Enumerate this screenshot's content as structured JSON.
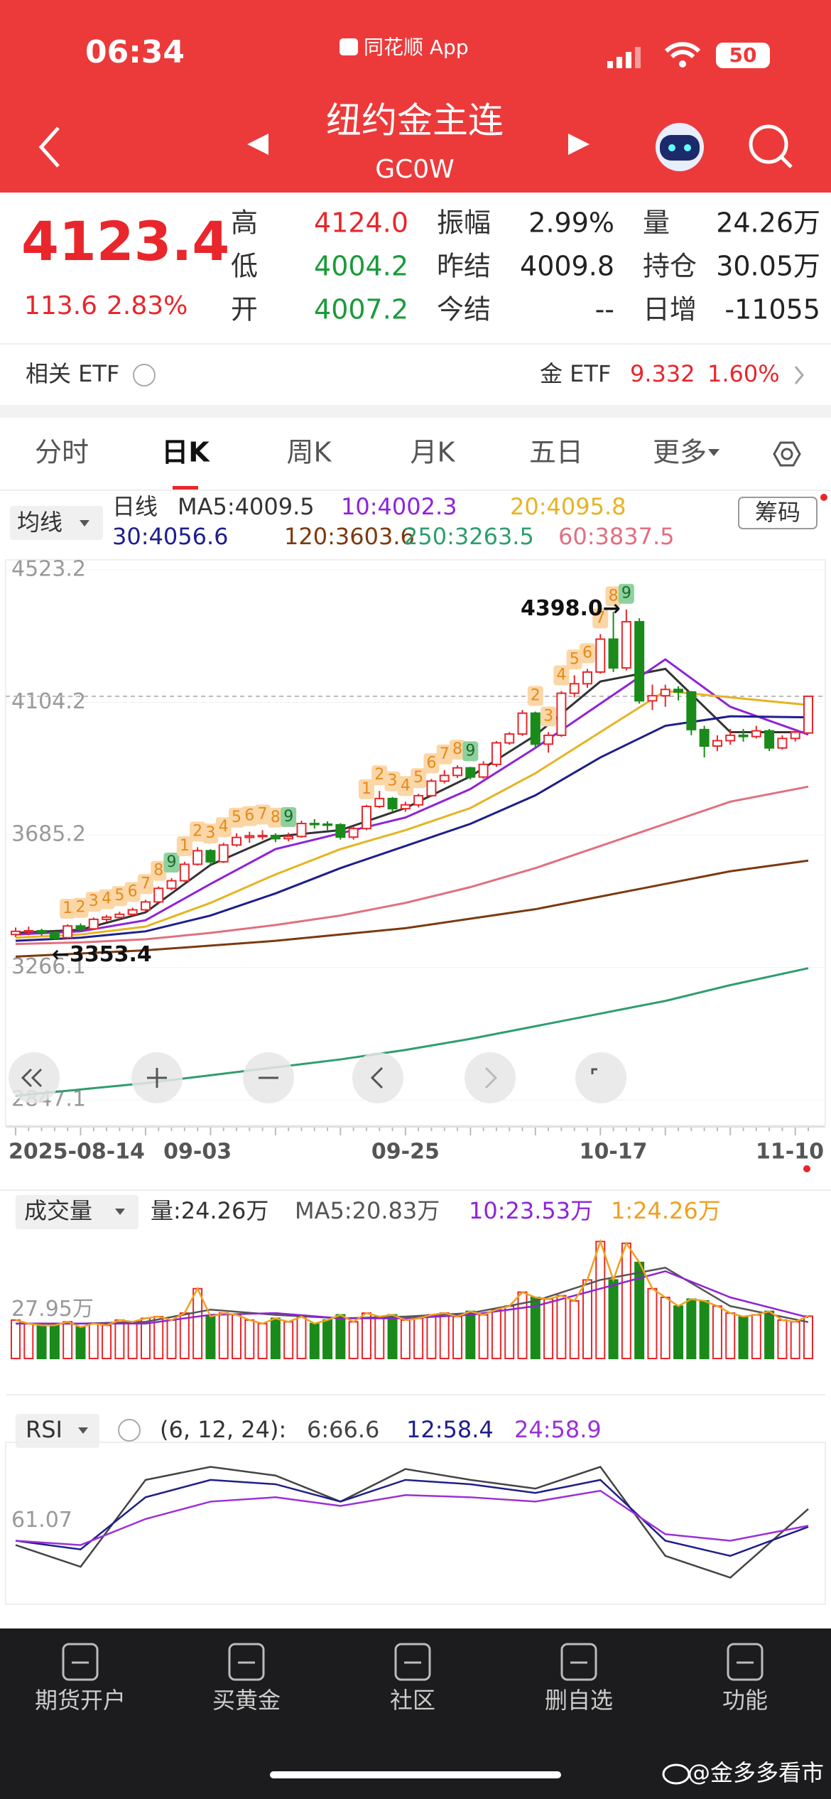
{
  "status_bar": {
    "time": "06:34",
    "app": "同花顺 App",
    "battery": "50"
  },
  "header": {
    "title": "纽约金主连",
    "code": "GC0W"
  },
  "quote": {
    "price": "4123.4",
    "change": "113.6",
    "change_pct": "2.83%",
    "fields": [
      {
        "label": "高",
        "value": "4124.0",
        "color": "#e8262b"
      },
      {
        "label": "振幅",
        "value": "2.99%",
        "color": "#222222"
      },
      {
        "label": "量",
        "value": "24.26万",
        "color": "#222222"
      },
      {
        "label": "低",
        "value": "4004.2",
        "color": "#1a9b3a"
      },
      {
        "label": "昨结",
        "value": "4009.8",
        "color": "#222222"
      },
      {
        "label": "持仓",
        "value": "30.05万",
        "color": "#222222"
      },
      {
        "label": "开",
        "value": "4007.2",
        "color": "#1a9b3a"
      },
      {
        "label": "今结",
        "value": "--",
        "color": "#222222"
      },
      {
        "label": "日增",
        "value": "-11055",
        "color": "#222222"
      }
    ]
  },
  "etf": {
    "label": "相关 ETF",
    "name": "金 ETF",
    "price": "9.332",
    "pct": "1.60%"
  },
  "tabs": {
    "items": [
      "分时",
      "日K",
      "周K",
      "月K",
      "五日",
      "更多"
    ],
    "active": 1
  },
  "kline": {
    "selector": "均线",
    "period": "日线",
    "chips": "筹码",
    "ylim": [
      2847.1,
      4523.2
    ],
    "yticks": [
      4523.2,
      4104.2,
      3685.2,
      3266.1,
      2847.1
    ],
    "high_label": "4398.0→",
    "low_label": "←3353.4",
    "dates": [
      "2025-08-14",
      null,
      null,
      null,
      null,
      null,
      null,
      null,
      null,
      null,
      null,
      null,
      null,
      null,
      "09-03",
      null,
      null,
      null,
      null,
      null,
      null,
      null,
      null,
      null,
      null,
      null,
      null,
      null,
      null,
      null,
      "09-25",
      null,
      null,
      null,
      null,
      null,
      null,
      null,
      null,
      null,
      null,
      null,
      null,
      null,
      null,
      null,
      "10-17",
      null,
      null,
      null,
      null,
      null,
      null,
      null,
      null,
      null,
      null,
      null,
      null,
      null,
      null,
      "11-10"
    ],
    "candles": [
      [
        3370,
        3392,
        3362,
        3380
      ],
      [
        3380,
        3395,
        3368,
        3382
      ],
      [
        3382,
        3388,
        3366,
        3376
      ],
      [
        3376,
        3380,
        3353.4,
        3358
      ],
      [
        3360,
        3402,
        3356,
        3397
      ],
      [
        3397,
        3405,
        3380,
        3387
      ],
      [
        3388,
        3424,
        3384,
        3418
      ],
      [
        3418,
        3432,
        3410,
        3425
      ],
      [
        3424,
        3442,
        3418,
        3434
      ],
      [
        3434,
        3455,
        3428,
        3448
      ],
      [
        3448,
        3480,
        3442,
        3473
      ],
      [
        3473,
        3522,
        3468,
        3516
      ],
      [
        3516,
        3548,
        3510,
        3540
      ],
      [
        3540,
        3600,
        3536,
        3592
      ],
      [
        3592,
        3646,
        3588,
        3635
      ],
      [
        3635,
        3640,
        3590,
        3600
      ],
      [
        3600,
        3660,
        3596,
        3653
      ],
      [
        3653,
        3690,
        3648,
        3677
      ],
      [
        3677,
        3695,
        3660,
        3682
      ],
      [
        3682,
        3700,
        3670,
        3683
      ],
      [
        3683,
        3690,
        3662,
        3673
      ],
      [
        3673,
        3692,
        3665,
        3680
      ],
      [
        3680,
        3730,
        3676,
        3721
      ],
      [
        3721,
        3735,
        3705,
        3719
      ],
      [
        3719,
        3728,
        3700,
        3717
      ],
      [
        3717,
        3722,
        3670,
        3678
      ],
      [
        3678,
        3712,
        3670,
        3705
      ],
      [
        3705,
        3780,
        3700,
        3775
      ],
      [
        3775,
        3824,
        3770,
        3800
      ],
      [
        3800,
        3805,
        3760,
        3768
      ],
      [
        3768,
        3790,
        3758,
        3780
      ],
      [
        3780,
        3815,
        3772,
        3809
      ],
      [
        3809,
        3862,
        3805,
        3855
      ],
      [
        3855,
        3890,
        3848,
        3873
      ],
      [
        3873,
        3905,
        3865,
        3897
      ],
      [
        3897,
        3900,
        3860,
        3868
      ],
      [
        3868,
        3918,
        3862,
        3908
      ],
      [
        3908,
        3982,
        3900,
        3976
      ],
      [
        3976,
        4010,
        3970,
        4004
      ],
      [
        4004,
        4080,
        3998,
        4070
      ],
      [
        4070,
        4075,
        3960,
        3972
      ],
      [
        3972,
        4010,
        3945,
        4000
      ],
      [
        4000,
        4140,
        3995,
        4133
      ],
      [
        4133,
        4190,
        4120,
        4163
      ],
      [
        4163,
        4210,
        4150,
        4200
      ],
      [
        4200,
        4320,
        4195,
        4304
      ],
      [
        4304,
        4390,
        4200,
        4213
      ],
      [
        4213,
        4398.0,
        4205,
        4359
      ],
      [
        4359,
        4370,
        4100,
        4109
      ],
      [
        4109,
        4160,
        4080,
        4125
      ],
      [
        4125,
        4160,
        4090,
        4145
      ],
      [
        4145,
        4155,
        4110,
        4137
      ],
      [
        4137,
        4140,
        4000,
        4018
      ],
      [
        4018,
        4030,
        3930,
        3966
      ],
      [
        3966,
        4000,
        3950,
        3983
      ],
      [
        3983,
        4020,
        3970,
        4000
      ],
      [
        4000,
        4020,
        3980,
        3996
      ],
      [
        3996,
        4030,
        3990,
        4014
      ],
      [
        4014,
        4020,
        3950,
        3960
      ],
      [
        3960,
        4000,
        3955,
        3990
      ],
      [
        3990,
        4020,
        3980,
        4009.8
      ],
      [
        4007.2,
        4124.0,
        4004.2,
        4123.4
      ]
    ],
    "td": [
      null,
      null,
      null,
      null,
      1,
      2,
      3,
      4,
      5,
      6,
      7,
      8,
      9,
      1,
      2,
      3,
      4,
      5,
      6,
      7,
      8,
      9,
      null,
      null,
      null,
      null,
      null,
      1,
      2,
      3,
      4,
      5,
      6,
      7,
      8,
      9,
      null,
      null,
      null,
      null,
      2,
      3,
      4,
      5,
      6,
      7,
      8,
      9,
      null,
      null,
      null,
      null,
      null,
      null,
      null,
      null,
      null,
      null,
      null,
      null,
      null,
      null
    ],
    "ma_x": [
      0,
      5,
      10,
      15,
      20,
      25,
      30,
      35,
      40,
      45,
      50,
      55,
      61
    ],
    "ma": [
      {
        "label": "MA5:4009.5",
        "color": "#333333",
        "values": [
          3375,
          3385,
          3440,
          3590,
          3680,
          3700,
          3770,
          3870,
          4000,
          4170,
          4210,
          4010,
          4009.5
        ]
      },
      {
        "label": "10:4002.3",
        "color": "#8e24d6",
        "values": [
          3370,
          3380,
          3415,
          3530,
          3640,
          3690,
          3740,
          3830,
          3960,
          4100,
          4240,
          4090,
          4002.3
        ]
      },
      {
        "label": "20:4095.8",
        "color": "#e6b422",
        "values": [
          3360,
          3370,
          3395,
          3470,
          3560,
          3640,
          3700,
          3770,
          3880,
          4010,
          4140,
          4120,
          4095.8
        ]
      },
      {
        "label": "30:4056.6",
        "color": "#1e1e8c",
        "values": [
          3350,
          3360,
          3380,
          3430,
          3500,
          3580,
          3650,
          3720,
          3810,
          3930,
          4030,
          4060,
          4056.6
        ]
      },
      {
        "label": "120:3603.6",
        "color": "#7b3a10",
        "values": [
          3300,
          3310,
          3320,
          3335,
          3350,
          3370,
          3390,
          3420,
          3450,
          3490,
          3530,
          3570,
          3603.6
        ]
      },
      {
        "label": "250:3263.5",
        "color": "#2e9e6e",
        "values": [
          2860,
          2880,
          2900,
          2925,
          2950,
          2975,
          3005,
          3040,
          3080,
          3120,
          3160,
          3210,
          3263.5
        ]
      },
      {
        "label": "60:3837.5",
        "color": "#e07080",
        "values": [
          3340,
          3345,
          3355,
          3375,
          3400,
          3430,
          3470,
          3520,
          3580,
          3650,
          3720,
          3790,
          3837.5
        ]
      }
    ]
  },
  "volume": {
    "selector": "成交量",
    "label": "量:24.26万",
    "ylim": [
      0,
      70
    ],
    "yticks": [
      {
        "value": 27.95,
        "label": "27.95万"
      }
    ],
    "values": [
      22,
      20,
      19,
      19,
      21,
      18,
      20,
      19,
      22,
      21,
      23,
      24,
      22,
      26,
      40,
      24,
      26,
      25,
      22,
      20,
      23,
      21,
      24,
      20,
      22,
      25,
      21,
      26,
      24,
      25,
      22,
      23,
      25,
      26,
      24,
      27,
      25,
      28,
      30,
      38,
      35,
      34,
      36,
      33,
      45,
      67,
      45,
      66,
      55,
      40,
      35,
      30,
      34,
      33,
      30,
      26,
      24,
      25,
      27,
      22,
      21,
      24.26
    ],
    "day_line": {
      "label": "1:24.26万",
      "color": "#f0a020"
    },
    "ma_x": [
      0,
      5,
      10,
      15,
      20,
      25,
      30,
      35,
      40,
      45,
      50,
      55,
      61
    ],
    "ma": [
      {
        "label": "MA5:20.83万",
        "color": "#555555",
        "values": [
          20,
          20,
          21,
          28,
          25,
          23,
          24,
          26,
          33,
          45,
          52,
          30,
          20.83
        ]
      },
      {
        "label": "10:23.53万",
        "color": "#8e24d6",
        "values": [
          20,
          20,
          20,
          25,
          26,
          23,
          23,
          25,
          30,
          40,
          50,
          35,
          23.53
        ]
      }
    ]
  },
  "rsi": {
    "selector": "RSI",
    "params": "(6, 12, 24):",
    "ylim": [
      25,
      95
    ],
    "yticks": [
      61.07
    ],
    "x": [
      0,
      5,
      10,
      15,
      20,
      25,
      30,
      35,
      40,
      45,
      50,
      55,
      61
    ],
    "series": [
      {
        "label": "6:66.6",
        "color": "#444444",
        "values": [
          50,
          40,
          80,
          86,
          82,
          70,
          85,
          80,
          76,
          86,
          45,
          35,
          66.6
        ]
      },
      {
        "label": "12:58.4",
        "color": "#1e1e8c",
        "values": [
          52,
          48,
          72,
          80,
          78,
          70,
          80,
          78,
          74,
          80,
          52,
          45,
          58.4
        ]
      },
      {
        "label": "24:58.9",
        "color": "#9b30d9",
        "values": [
          52,
          50,
          62,
          70,
          72,
          68,
          73,
          72,
          70,
          75,
          55,
          52,
          58.9
        ]
      }
    ]
  },
  "nav": [
    "期货开户",
    "买黄金",
    "社区",
    "删自选",
    "功能"
  ],
  "watermark": "@金多多看市"
}
